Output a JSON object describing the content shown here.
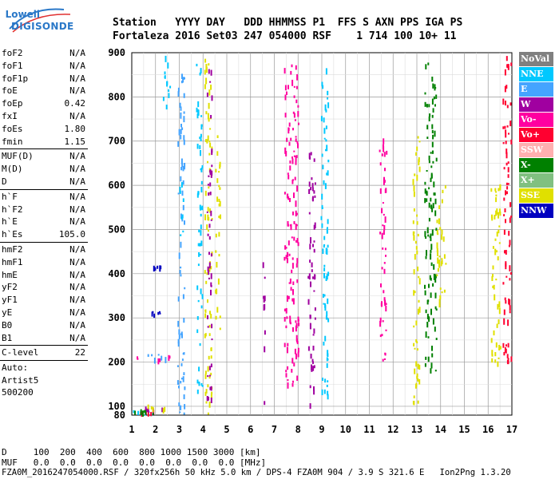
{
  "logo": {
    "line1": "Lowell",
    "line2": "DIGISONDE"
  },
  "header": {
    "line1": "Station   YYYY DAY   DDD HHMMSS P1  FFS S AXN PPS IGA PS",
    "line2": "Fortaleza 2016 Set03 247 054000 RSF    1 714 100 10+ 11"
  },
  "params_groups": [
    [
      {
        "label": "foF2",
        "value": "N/A"
      },
      {
        "label": "foF1",
        "value": "N/A"
      },
      {
        "label": "foF1p",
        "value": "N/A"
      },
      {
        "label": "foE",
        "value": "N/A"
      },
      {
        "label": "foEp",
        "value": "0.42"
      },
      {
        "label": "fxI",
        "value": "N/A"
      },
      {
        "label": "foEs",
        "value": "1.80"
      },
      {
        "label": "fmin",
        "value": "1.15"
      }
    ],
    [
      {
        "label": "MUF(D)",
        "value": "N/A"
      },
      {
        "label": "M(D)",
        "value": "N/A"
      },
      {
        "label": "D",
        "value": "N/A"
      }
    ],
    [
      {
        "label": "h`F",
        "value": "N/A"
      },
      {
        "label": "h`F2",
        "value": "N/A"
      },
      {
        "label": "h`E",
        "value": "N/A"
      },
      {
        "label": "h`Es",
        "value": "105.0"
      }
    ],
    [
      {
        "label": "hmF2",
        "value": "N/A"
      },
      {
        "label": "hmF1",
        "value": "N/A"
      },
      {
        "label": "hmE",
        "value": "N/A"
      },
      {
        "label": "yF2",
        "value": "N/A"
      },
      {
        "label": "yF1",
        "value": "N/A"
      },
      {
        "label": "yE",
        "value": "N/A"
      },
      {
        "label": "B0",
        "value": "N/A"
      },
      {
        "label": "B1",
        "value": "N/A"
      }
    ],
    [
      {
        "label": "C-level",
        "value": "22"
      }
    ]
  ],
  "auto": {
    "line1": "Auto:",
    "line2": "Artist5",
    "line3": "500200"
  },
  "legend": [
    {
      "label": "NoVal",
      "color": "#808080"
    },
    {
      "label": "NNE",
      "color": "#00c8ff"
    },
    {
      "label": "E",
      "color": "#44a4ff"
    },
    {
      "label": "W",
      "color": "#a000a0"
    },
    {
      "label": "Vo-",
      "color": "#ff00a0"
    },
    {
      "label": "Vo+",
      "color": "#ff0030"
    },
    {
      "label": "SSW",
      "color": "#ffb0b0"
    },
    {
      "label": "X-",
      "color": "#008000"
    },
    {
      "label": "X+",
      "color": "#80c080"
    },
    {
      "label": "SSE",
      "color": "#e0e000"
    },
    {
      "label": "NNW",
      "color": "#0000c0"
    }
  ],
  "footer": {
    "d_line": "D     100  200  400  600  800 1000 1500 3000 [km]",
    "muf_line": "MUF   0.0  0.0  0.0  0.0  0.0  0.0  0.0  0.0 [MHz]",
    "file_line": "FZA0M_2016247054000.RSF / 320fx256h 50 kHz 5.0 km / DPS-4 FZA0M 904 / 3.9 S 321.6 E   Ion2Png 1.3.20"
  },
  "chart_data": {
    "type": "scatter",
    "title": "",
    "xlabel": "",
    "ylabel": "",
    "xlim": [
      1,
      17
    ],
    "ylim": [
      80,
      900
    ],
    "x_ticks": [
      1,
      2,
      3,
      4,
      5,
      6,
      7,
      8,
      9,
      10,
      11,
      12,
      13,
      14,
      15,
      16,
      17
    ],
    "y_ticks": [
      100,
      200,
      300,
      400,
      500,
      600,
      700,
      800,
      900
    ],
    "grid": true,
    "legend_position": "right",
    "bands": [
      {
        "x": [
          1.05,
          1.95
        ],
        "y": [
          83,
          92
        ],
        "color": "#00c8ff"
      },
      {
        "x": [
          1.05,
          1.95
        ],
        "y": [
          86,
          95
        ],
        "color": "#ff0030"
      },
      {
        "x": [
          1.05,
          1.95
        ],
        "y": [
          88,
          96
        ],
        "color": "#008000"
      },
      {
        "x": [
          1.3,
          2.4
        ],
        "y": [
          92,
          100
        ],
        "color": "#a000a0"
      },
      {
        "x": [
          1.6,
          2.4
        ],
        "y": [
          95,
          104
        ],
        "color": "#e0e000"
      },
      {
        "x": [
          1.2,
          2.7
        ],
        "y": [
          207,
          217
        ],
        "color": "#ff00a0"
      },
      {
        "x": [
          1.4,
          2.5
        ],
        "y": [
          210,
          219
        ],
        "color": "#44a4ff"
      },
      {
        "x": [
          1.8,
          2.3
        ],
        "y": [
          308,
          316
        ],
        "color": "#0000c0"
      },
      {
        "x": [
          1.8,
          2.2
        ],
        "y": [
          413,
          420
        ],
        "color": "#0000c0"
      },
      {
        "x": [
          2.3,
          2.6
        ],
        "y": [
          760,
          895
        ],
        "color": "#00c8ff"
      },
      {
        "x": [
          2.9,
          3.2
        ],
        "y": [
          85,
          880
        ],
        "color": "#44a4ff"
      },
      {
        "x": [
          3.0,
          3.2
        ],
        "y": [
          480,
          620
        ],
        "color": "#00c8ff"
      },
      {
        "x": [
          3.7,
          3.95
        ],
        "y": [
          120,
          880
        ],
        "color": "#00c8ff"
      },
      {
        "x": [
          4.05,
          4.35
        ],
        "y": [
          85,
          900
        ],
        "color": "#e0e000"
      },
      {
        "x": [
          4.15,
          4.35
        ],
        "y": [
          90,
          895
        ],
        "color": "#a000a0"
      },
      {
        "x": [
          4.5,
          4.7
        ],
        "y": [
          260,
          720
        ],
        "color": "#e0e000"
      },
      {
        "x": [
          6.5,
          6.6
        ],
        "y": [
          95,
          440
        ],
        "color": "#a000a0"
      },
      {
        "x": [
          7.4,
          8.0
        ],
        "y": [
          150,
          880
        ],
        "color": "#ff00a0"
      },
      {
        "x": [
          8.4,
          8.7
        ],
        "y": [
          100,
          700
        ],
        "color": "#a000a0"
      },
      {
        "x": [
          8.95,
          9.25
        ],
        "y": [
          110,
          880
        ],
        "color": "#00c8ff"
      },
      {
        "x": [
          11.4,
          11.7
        ],
        "y": [
          180,
          720
        ],
        "color": "#ff00a0"
      },
      {
        "x": [
          12.8,
          13.1
        ],
        "y": [
          100,
          720
        ],
        "color": "#e0e000"
      },
      {
        "x": [
          13.3,
          13.8
        ],
        "y": [
          180,
          880
        ],
        "color": "#008000"
      },
      {
        "x": [
          13.8,
          14.2
        ],
        "y": [
          320,
          600
        ],
        "color": "#e0e000"
      },
      {
        "x": [
          16.1,
          16.5
        ],
        "y": [
          200,
          620
        ],
        "color": "#e0e000"
      },
      {
        "x": [
          16.6,
          16.95
        ],
        "y": [
          200,
          900
        ],
        "color": "#ff0030"
      }
    ]
  }
}
